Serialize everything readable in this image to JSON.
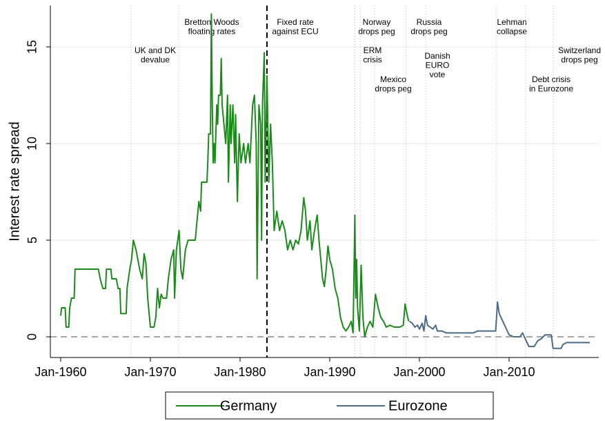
{
  "chart_data": {
    "type": "line",
    "y_label": "Interest rate spread",
    "xlim": [
      1958.85,
      2020.0
    ],
    "ylim": [
      -1.07,
      17.14
    ],
    "xticks": [
      {
        "value": 1960,
        "label": "Jan-1960"
      },
      {
        "value": 1970,
        "label": "Jan-1970"
      },
      {
        "value": 1980,
        "label": "Jan-1980"
      },
      {
        "value": 1990,
        "label": "Jan-1990"
      },
      {
        "value": 2000,
        "label": "Jan-2000"
      },
      {
        "value": 2010,
        "label": "Jan-2010"
      }
    ],
    "yticks": [
      0,
      5,
      10,
      15
    ],
    "grid": true,
    "zero_line": true,
    "legend": "bottom",
    "series": [
      {
        "name": "Germany",
        "color": "#1a8a1a",
        "x": [
          1960.0,
          1960.1,
          1960.5,
          1960.6,
          1960.9,
          1961.0,
          1961.2,
          1961.5,
          1961.6,
          1964.2,
          1964.4,
          1964.7,
          1965.0,
          1965.1,
          1965.6,
          1965.7,
          1966.2,
          1966.4,
          1966.6,
          1966.7,
          1967.3,
          1967.4,
          1967.7,
          1967.9,
          1968.1,
          1968.4,
          1968.6,
          1968.8,
          1969.1,
          1969.3,
          1969.5,
          1969.7,
          1969.9,
          1970.0,
          1970.4,
          1970.6,
          1970.8,
          1971.0,
          1971.2,
          1971.4,
          1971.8,
          1972.0,
          1972.3,
          1972.6,
          1972.7,
          1972.9,
          1973.2,
          1973.4,
          1973.6,
          1973.9,
          1974.2,
          1975.0,
          1975.2,
          1975.4,
          1975.6,
          1975.7,
          1976.3,
          1976.4,
          1976.5,
          1976.7,
          1976.8,
          1976.9,
          1977.0,
          1977.1,
          1977.2,
          1977.4,
          1977.5,
          1977.6,
          1977.8,
          1977.9,
          1978.0,
          1978.2,
          1978.4,
          1978.6,
          1978.7,
          1978.9,
          1979.0,
          1979.2,
          1979.4,
          1979.5,
          1979.7,
          1979.9,
          1980.1,
          1980.4,
          1980.6,
          1980.9,
          1981.1,
          1981.4,
          1981.6,
          1981.8,
          1981.9,
          1982.1,
          1982.3,
          1982.4,
          1982.5,
          1982.7,
          1982.8,
          1983.0,
          1983.2,
          1983.4,
          1983.6,
          1983.8,
          1984.1,
          1984.4,
          1984.7,
          1985.0,
          1985.3,
          1985.6,
          1985.9,
          1986.2,
          1986.5,
          1986.8,
          1987.1,
          1987.3,
          1987.5,
          1987.8,
          1988.0,
          1988.3,
          1988.6,
          1988.8,
          1989.0,
          1989.2,
          1989.4,
          1989.6,
          1989.8,
          1990.0,
          1990.3,
          1990.6,
          1990.9,
          1991.2,
          1991.5,
          1991.8,
          1992.1,
          1992.4,
          1992.6,
          1992.8,
          1992.9,
          1993.0,
          1993.1,
          1993.3,
          1993.5,
          1993.7,
          1993.9,
          1994.2,
          1994.5,
          1994.8,
          1995.1,
          1995.4,
          1995.7,
          1996.0,
          1996.3,
          1996.7,
          1997.2,
          1997.8,
          1998.2,
          1998.4,
          1998.6,
          1998.8
        ],
        "values": [
          1.1,
          1.5,
          1.5,
          0.5,
          0.5,
          1.5,
          2.0,
          2.0,
          3.5,
          3.5,
          3.0,
          2.5,
          2.5,
          3.5,
          3.5,
          3.0,
          3.0,
          2.5,
          2.5,
          1.2,
          1.2,
          2.5,
          3.5,
          4.0,
          5.0,
          4.5,
          4.0,
          3.5,
          3.0,
          4.3,
          3.8,
          2.0,
          1.0,
          0.5,
          0.5,
          1.0,
          2.5,
          1.5,
          2.2,
          2.0,
          2.0,
          3.0,
          4.0,
          4.5,
          2.0,
          4.5,
          5.5,
          3.5,
          3.0,
          4.5,
          5.0,
          5.0,
          6.0,
          7.0,
          6.5,
          8.0,
          8.0,
          9.0,
          10.5,
          10.5,
          16.7,
          12.0,
          9.0,
          10.0,
          9.0,
          12.0,
          11.0,
          12.5,
          12.5,
          14.4,
          12.0,
          11.0,
          10.0,
          12.5,
          8.0,
          12.0,
          10.0,
          12.0,
          9.0,
          11.5,
          7.0,
          10.5,
          9.0,
          10.0,
          9.0,
          10.0,
          9.0,
          12.0,
          12.5,
          10.0,
          3.0,
          12.0,
          11.0,
          5.0,
          12.0,
          14.7,
          8.0,
          13.5,
          8.0,
          11.0,
          9.0,
          5.5,
          6.5,
          5.5,
          6.0,
          5.5,
          4.5,
          5.0,
          4.5,
          5.0,
          4.8,
          5.5,
          7.2,
          6.5,
          5.0,
          6.0,
          4.5,
          5.5,
          6.3,
          5.0,
          4.0,
          3.0,
          2.6,
          3.5,
          4.7,
          4.0,
          3.5,
          2.5,
          2.0,
          1.0,
          0.5,
          0.3,
          0.5,
          0.8,
          0.2,
          6.3,
          2.0,
          4.0,
          1.5,
          0.3,
          3.7,
          1.0,
          0.0,
          0.5,
          0.8,
          0.5,
          2.2,
          1.5,
          1.0,
          0.8,
          0.5,
          0.6,
          0.5,
          0.5,
          0.6,
          1.7,
          1.2,
          0.8
        ]
      },
      {
        "name": "Eurozone",
        "color": "#4a6a85",
        "x": [
          1998.9,
          1999.2,
          1999.5,
          1999.8,
          2000.0,
          2000.3,
          2000.5,
          2000.7,
          2000.9,
          2001.2,
          2001.5,
          2001.8,
          2002.0,
          2002.5,
          2003.0,
          2004.0,
          2005.0,
          2006.0,
          2006.5,
          2007.5,
          2008.5,
          2008.6,
          2008.7,
          2008.9,
          2009.2,
          2009.6,
          2010.0,
          2010.5,
          2011.2,
          2011.5,
          2011.9,
          2012.2,
          2012.8,
          2013.2,
          2013.6,
          2014.0,
          2014.7,
          2014.9,
          2015.8,
          2016.0,
          2016.4,
          2019.0
        ],
        "values": [
          0.8,
          0.7,
          0.5,
          0.6,
          0.4,
          0.7,
          0.3,
          1.1,
          0.6,
          0.5,
          0.4,
          0.6,
          0.3,
          0.3,
          0.2,
          0.2,
          0.2,
          0.2,
          0.3,
          0.3,
          0.3,
          1.0,
          1.8,
          1.2,
          0.9,
          0.5,
          0.1,
          0.0,
          0.0,
          0.2,
          -0.2,
          -0.5,
          -0.5,
          -0.2,
          -0.1,
          0.1,
          0.1,
          -0.6,
          -0.6,
          -0.4,
          -0.3,
          -0.3
        ]
      }
    ],
    "annotations": [
      {
        "x": 1967.85,
        "lines": [
          "UK and DK",
          "devalue"
        ]
      },
      {
        "x": 1973.15,
        "lines": [
          "Bretton Woods",
          "floating rates"
        ]
      },
      {
        "x": 1983.0,
        "lines": [
          "Fixed rate",
          "against ECU"
        ],
        "style": "dashed"
      },
      {
        "x": 1992.8,
        "lines": [
          "Norway",
          "drops peg"
        ]
      },
      {
        "x": 1993.4,
        "lines": [
          "ERM",
          "crisis"
        ]
      },
      {
        "x": 1995.0,
        "lines": [
          "Mexico",
          "drops peg"
        ]
      },
      {
        "x": 1998.5,
        "lines": [
          "Russia",
          "drops peg"
        ]
      },
      {
        "x": 2000.7,
        "lines": [
          "Danish",
          "EURO",
          "vote"
        ]
      },
      {
        "x": 2008.6,
        "lines": [
          "Lehman",
          "collapse"
        ]
      },
      {
        "x": 2011.85,
        "lines": [
          "Debt crisis",
          "in Eurozone"
        ]
      },
      {
        "x": 2014.9,
        "lines": [
          "Switzerland",
          "drops peg"
        ]
      }
    ]
  }
}
